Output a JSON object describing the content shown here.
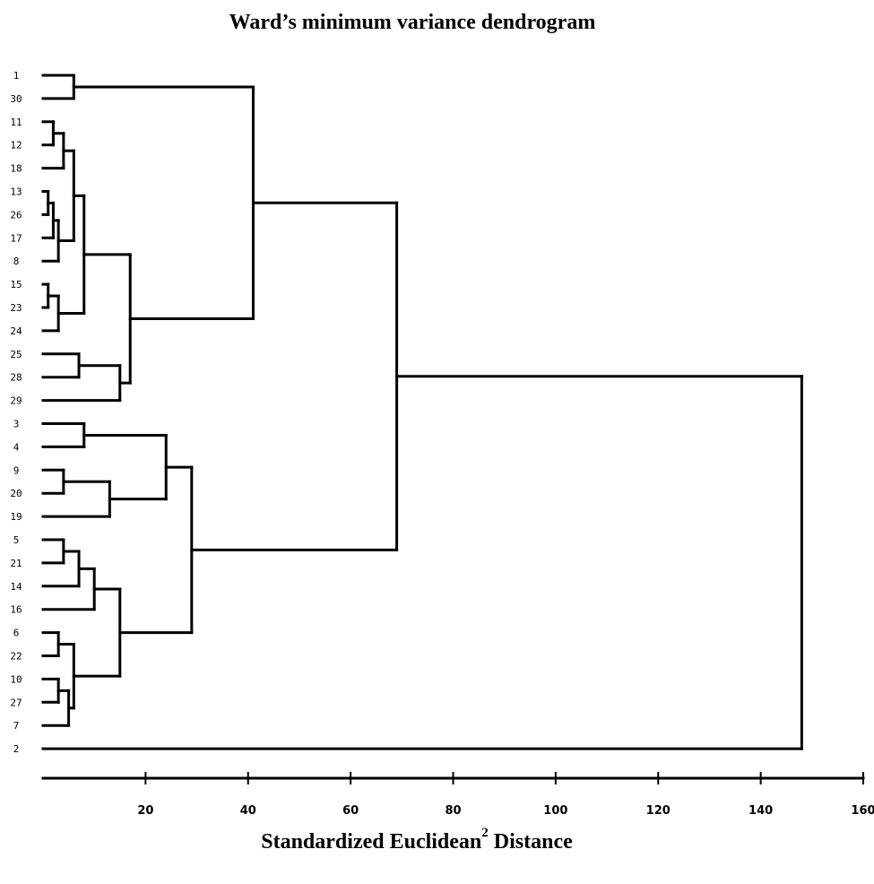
{
  "chart_data": {
    "type": "dendrogram",
    "title": "Ward’s minimum variance dendrogram",
    "xlabel_main": "Standardized Euclidean",
    "xlabel_sup": "2",
    "xlabel_tail": " Distance",
    "xlim": [
      0,
      160
    ],
    "x_ticks": [
      20,
      40,
      60,
      80,
      100,
      120,
      140,
      160
    ],
    "leaves": [
      "1",
      "30",
      "11",
      "12",
      "18",
      "13",
      "26",
      "17",
      "8",
      "15",
      "23",
      "24",
      "25",
      "28",
      "29",
      "3",
      "4",
      "9",
      "20",
      "19",
      "5",
      "21",
      "14",
      "16",
      "6",
      "22",
      "10",
      "27",
      "7",
      "2"
    ],
    "merges": [
      {
        "id": "A",
        "children": [
          "1",
          "30"
        ],
        "height": 6
      },
      {
        "id": "B",
        "children": [
          "11",
          "12"
        ],
        "height": 2
      },
      {
        "id": "C",
        "children": [
          "B",
          "18"
        ],
        "height": 4
      },
      {
        "id": "D",
        "children": [
          "13",
          "26"
        ],
        "height": 1
      },
      {
        "id": "E",
        "children": [
          "D",
          "17"
        ],
        "height": 2
      },
      {
        "id": "F",
        "children": [
          "E",
          "8"
        ],
        "height": 3
      },
      {
        "id": "G",
        "children": [
          "C",
          "F"
        ],
        "height": 6
      },
      {
        "id": "H",
        "children": [
          "15",
          "23"
        ],
        "height": 1
      },
      {
        "id": "I",
        "children": [
          "H",
          "24"
        ],
        "height": 3
      },
      {
        "id": "J",
        "children": [
          "G",
          "I"
        ],
        "height": 8
      },
      {
        "id": "K",
        "children": [
          "25",
          "28"
        ],
        "height": 7
      },
      {
        "id": "L",
        "children": [
          "K",
          "29"
        ],
        "height": 15
      },
      {
        "id": "M",
        "children": [
          "J",
          "L"
        ],
        "height": 17
      },
      {
        "id": "N",
        "children": [
          "A",
          "M"
        ],
        "height": 41
      },
      {
        "id": "O",
        "children": [
          "3",
          "4"
        ],
        "height": 8
      },
      {
        "id": "P",
        "children": [
          "9",
          "20"
        ],
        "height": 4
      },
      {
        "id": "Q",
        "children": [
          "P",
          "19"
        ],
        "height": 13
      },
      {
        "id": "R",
        "children": [
          "O",
          "Q"
        ],
        "height": 24
      },
      {
        "id": "S",
        "children": [
          "5",
          "21"
        ],
        "height": 4
      },
      {
        "id": "T",
        "children": [
          "S",
          "14"
        ],
        "height": 7
      },
      {
        "id": "U",
        "children": [
          "T",
          "16"
        ],
        "height": 10
      },
      {
        "id": "V",
        "children": [
          "6",
          "22"
        ],
        "height": 3
      },
      {
        "id": "W",
        "children": [
          "10",
          "27"
        ],
        "height": 3
      },
      {
        "id": "X",
        "children": [
          "W",
          "7"
        ],
        "height": 5
      },
      {
        "id": "Y",
        "children": [
          "V",
          "X"
        ],
        "height": 6
      },
      {
        "id": "Z",
        "children": [
          "U",
          "Y"
        ],
        "height": 15
      },
      {
        "id": "AA",
        "children": [
          "R",
          "Z"
        ],
        "height": 29
      },
      {
        "id": "AB",
        "children": [
          "N",
          "AA"
        ],
        "height": 69
      },
      {
        "id": "AC",
        "children": [
          "AB",
          "2"
        ],
        "height": 148
      }
    ]
  }
}
